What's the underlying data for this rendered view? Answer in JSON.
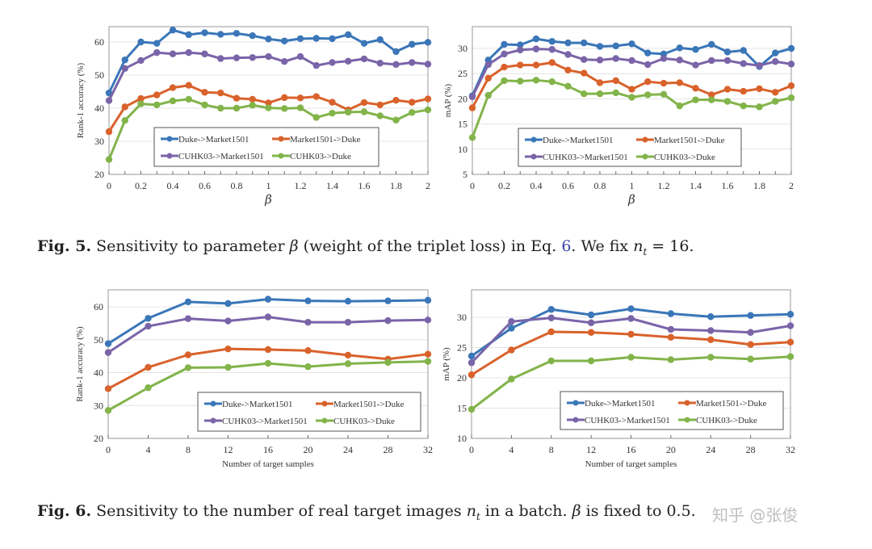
{
  "figures": [
    {
      "caption_label": "Fig. 5.",
      "caption_parts": [
        "Sensitivity to parameter ",
        "β",
        " (weight of the triplet loss) in Eq. ",
        "6",
        ". We fix ",
        "n",
        "t",
        " = 16."
      ]
    },
    {
      "caption_label": "Fig. 6.",
      "caption_parts": [
        "Sensitivity to the number of real target images ",
        "n",
        "t",
        " in a batch. ",
        "β",
        " is fixed to 0.5."
      ]
    }
  ],
  "watermark": "知乎 @张俊",
  "colors": {
    "Duke->Market1501": "#3a76b8",
    "Market1501->Duke": "#d9622b",
    "CUHK03->Market1501": "#7a64a8",
    "CUHK03->Duke": "#82b44a"
  },
  "chart_data": [
    {
      "type": "line",
      "title": "",
      "xlabel": "β",
      "ylabel": "Rank-1 accuracy (%)",
      "x": [
        0,
        0.1,
        0.2,
        0.3,
        0.4,
        0.5,
        0.6,
        0.7,
        0.8,
        0.9,
        1.0,
        1.1,
        1.2,
        1.3,
        1.4,
        1.5,
        1.6,
        1.7,
        1.8,
        1.9,
        2.0
      ],
      "xticks": [
        0,
        0.2,
        0.4,
        0.6,
        0.8,
        1,
        1.2,
        1.4,
        1.6,
        1.8,
        2
      ],
      "xtick_labels": [
        "0",
        "0.2",
        "0.4",
        "0.6",
        "0.8",
        "1",
        "1.2",
        "1.4",
        "1.6",
        "1.8",
        "2"
      ],
      "xlim": [
        0,
        2
      ],
      "ylim": [
        20,
        65
      ],
      "yticks": [
        20,
        30,
        40,
        50,
        60
      ],
      "grid": true,
      "legend": "bottom-center",
      "series": [
        {
          "name": "Duke->Market1501",
          "values": [
            44.6,
            54.6,
            60.0,
            59.6,
            63.6,
            62.2,
            62.8,
            62.3,
            62.6,
            61.9,
            60.9,
            60.3,
            61.0,
            61.1,
            61.0,
            62.2,
            59.6,
            60.7,
            57.1,
            59.3,
            59.9
          ]
        },
        {
          "name": "Market1501->Duke",
          "values": [
            32.9,
            40.4,
            42.9,
            44.0,
            46.2,
            46.9,
            44.8,
            44.6,
            43.0,
            42.7,
            41.6,
            43.2,
            43.1,
            43.5,
            41.8,
            39.5,
            41.7,
            41.0,
            42.4,
            41.8,
            42.8
          ]
        },
        {
          "name": "CUHK03->Market1501",
          "values": [
            42.3,
            52.0,
            54.4,
            56.8,
            56.4,
            56.8,
            56.4,
            55.0,
            55.2,
            55.3,
            55.6,
            54.1,
            55.6,
            52.9,
            53.8,
            54.2,
            54.9,
            53.6,
            53.2,
            53.8,
            53.3
          ]
        },
        {
          "name": "CUHK03->Duke",
          "values": [
            24.5,
            36.3,
            41.3,
            41.0,
            42.2,
            42.7,
            41.0,
            40.0,
            40.0,
            40.9,
            40.1,
            39.9,
            40.1,
            37.2,
            38.5,
            38.8,
            38.9,
            37.7,
            36.4,
            38.7,
            39.5
          ]
        }
      ]
    },
    {
      "type": "line",
      "title": "",
      "xlabel": "β",
      "ylabel": "mAP (%)",
      "x": [
        0,
        0.1,
        0.2,
        0.3,
        0.4,
        0.5,
        0.6,
        0.7,
        0.8,
        0.9,
        1.0,
        1.1,
        1.2,
        1.3,
        1.4,
        1.5,
        1.6,
        1.7,
        1.8,
        1.9,
        2.0
      ],
      "xticks": [
        0,
        0.2,
        0.4,
        0.6,
        0.8,
        1,
        1.2,
        1.4,
        1.6,
        1.8,
        2
      ],
      "xtick_labels": [
        "0",
        "0.2",
        "0.4",
        "0.6",
        "0.8",
        "1",
        "1.2",
        "1.4",
        "1.6",
        "1.8",
        "2"
      ],
      "xlim": [
        0,
        2
      ],
      "ylim": [
        5,
        33
      ],
      "yticks": [
        5,
        10,
        15,
        20,
        25,
        30
      ],
      "grid": true,
      "legend": "bottom-center",
      "series": [
        {
          "name": "Duke->Market1501",
          "values": [
            20.6,
            27.7,
            30.8,
            30.7,
            31.9,
            31.4,
            31.1,
            31.1,
            30.4,
            30.5,
            30.9,
            29.1,
            28.9,
            30.1,
            29.8,
            30.8,
            29.3,
            29.6,
            26.4,
            29.1,
            30.0
          ]
        },
        {
          "name": "Market1501->Duke",
          "values": [
            18.2,
            24.1,
            26.3,
            26.7,
            26.7,
            27.2,
            25.7,
            25.1,
            23.2,
            23.6,
            21.9,
            23.4,
            23.1,
            23.2,
            22.1,
            20.8,
            21.9,
            21.5,
            22.0,
            21.3,
            22.6
          ]
        },
        {
          "name": "CUHK03->Market1501",
          "values": [
            20.4,
            26.8,
            28.9,
            29.7,
            29.9,
            29.8,
            28.8,
            27.8,
            27.7,
            28.0,
            27.6,
            26.8,
            28.0,
            27.7,
            26.7,
            27.6,
            27.6,
            27.0,
            26.6,
            27.4,
            26.9
          ]
        },
        {
          "name": "CUHK03->Duke",
          "values": [
            12.3,
            20.7,
            23.6,
            23.5,
            23.7,
            23.4,
            22.5,
            21.0,
            21.0,
            21.2,
            20.3,
            20.8,
            20.9,
            18.6,
            19.8,
            19.8,
            19.5,
            18.6,
            18.4,
            19.5,
            20.2
          ]
        }
      ]
    },
    {
      "type": "line",
      "title": "",
      "xlabel": "Number of target samples",
      "ylabel": "Rank-1 accuracy (%)",
      "x": [
        0,
        4,
        8,
        12,
        16,
        20,
        24,
        28,
        32
      ],
      "xticks": [
        0,
        4,
        8,
        12,
        16,
        20,
        24,
        28,
        32
      ],
      "xtick_labels": [
        "0",
        "4",
        "8",
        "12",
        "16",
        "20",
        "24",
        "28",
        "32"
      ],
      "xlim": [
        0,
        32
      ],
      "ylim": [
        20,
        65
      ],
      "yticks": [
        20,
        30,
        40,
        50,
        60
      ],
      "grid": true,
      "legend": "bottom-right",
      "series": [
        {
          "name": "Duke->Market1501",
          "values": [
            48.8,
            56.5,
            61.5,
            61.0,
            62.3,
            61.8,
            61.7,
            61.8,
            62.0
          ]
        },
        {
          "name": "Market1501->Duke",
          "values": [
            35.1,
            41.6,
            45.4,
            47.2,
            47.0,
            46.7,
            45.3,
            44.1,
            45.6
          ]
        },
        {
          "name": "CUHK03->Market1501",
          "values": [
            46.1,
            54.1,
            56.4,
            55.7,
            56.9,
            55.3,
            55.3,
            55.8,
            56.0
          ]
        },
        {
          "name": "CUHK03->Duke",
          "values": [
            28.5,
            35.4,
            41.5,
            41.6,
            42.8,
            41.8,
            42.7,
            43.1,
            43.4
          ]
        }
      ]
    },
    {
      "type": "line",
      "title": "",
      "xlabel": "Number of target samples",
      "ylabel": "mAP (%)",
      "x": [
        0,
        4,
        8,
        12,
        16,
        20,
        24,
        28,
        32
      ],
      "xticks": [
        0,
        4,
        8,
        12,
        16,
        20,
        24,
        28,
        32
      ],
      "xtick_labels": [
        "0",
        "4",
        "8",
        "12",
        "16",
        "20",
        "24",
        "28",
        "32"
      ],
      "xlim": [
        0,
        32
      ],
      "ylim": [
        10,
        34
      ],
      "yticks": [
        10,
        15,
        20,
        25,
        30
      ],
      "grid": true,
      "legend": "bottom-right",
      "series": [
        {
          "name": "Duke->Market1501",
          "values": [
            23.6,
            28.2,
            31.3,
            30.4,
            31.4,
            30.6,
            30.1,
            30.3,
            30.5
          ]
        },
        {
          "name": "Market1501->Duke",
          "values": [
            20.5,
            24.6,
            27.6,
            27.5,
            27.2,
            26.7,
            26.3,
            25.5,
            25.9
          ]
        },
        {
          "name": "CUHK03->Market1501",
          "values": [
            22.5,
            29.3,
            29.9,
            29.1,
            29.8,
            28.0,
            27.8,
            27.5,
            28.6
          ]
        },
        {
          "name": "CUHK03->Duke",
          "values": [
            14.8,
            19.8,
            22.8,
            22.8,
            23.4,
            23.0,
            23.4,
            23.1,
            23.5
          ]
        }
      ]
    }
  ]
}
